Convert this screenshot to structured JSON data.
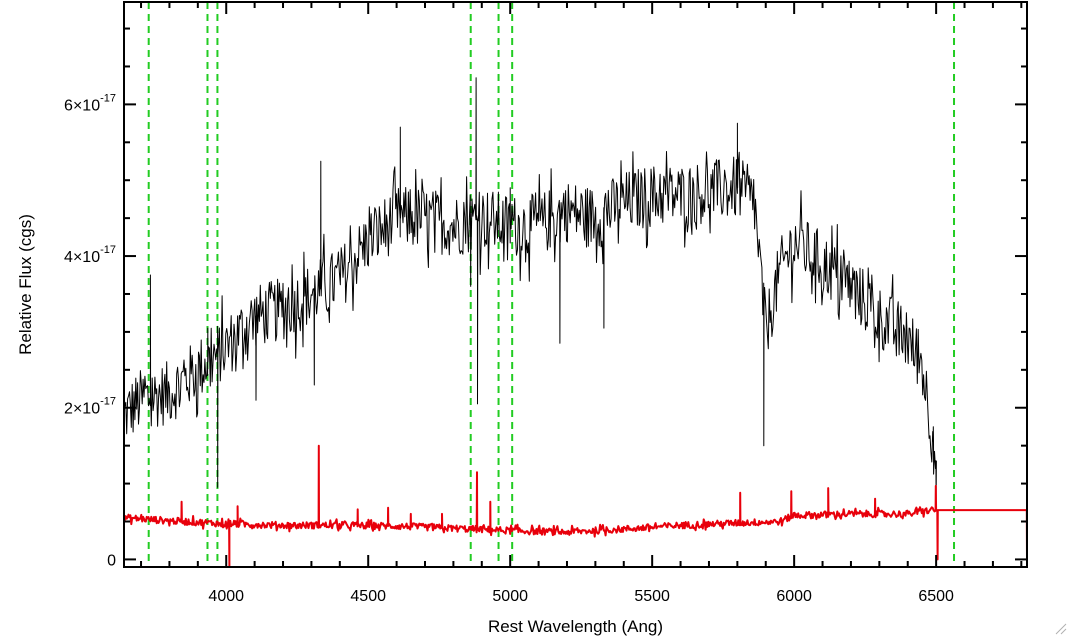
{
  "chart_data": {
    "type": "line",
    "xlabel": "Rest Wavelength (Ang)",
    "ylabel": "Relative Flux (cgs)",
    "xlim": [
      3640,
      6820
    ],
    "ylim": [
      -1e-18,
      7.35e-17
    ],
    "x_ticks": [
      {
        "value": 4000,
        "label": "4000"
      },
      {
        "value": 4500,
        "label": "4500"
      },
      {
        "value": 5000,
        "label": "5000"
      },
      {
        "value": 5500,
        "label": "5500"
      },
      {
        "value": 6000,
        "label": "6000"
      },
      {
        "value": 6500,
        "label": "6500"
      }
    ],
    "y_ticks": [
      {
        "value": 0,
        "label": "0"
      },
      {
        "value": 2e-17,
        "mant": "2×10",
        "exp": "-17"
      },
      {
        "value": 4e-17,
        "mant": "4×10",
        "exp": "-17"
      },
      {
        "value": 6e-17,
        "mant": "6×10",
        "exp": "-17"
      }
    ],
    "series": [
      {
        "role": "flux",
        "color": "#000000",
        "noise": 4.2e-18,
        "x": [
          3640,
          3700,
          3800,
          3900,
          4000,
          4100,
          4200,
          4300,
          4400,
          4500,
          4600,
          4700,
          4800,
          4900,
          5000,
          5100,
          5200,
          5300,
          5400,
          5500,
          5600,
          5700,
          5800,
          5860,
          5900,
          5950,
          6000,
          6100,
          6200,
          6300,
          6400,
          6450,
          6500
        ],
        "y": [
          1.9,
          2.1,
          2.2,
          2.5,
          2.8,
          3.2,
          3.3,
          3.5,
          3.7,
          4.2,
          4.5,
          4.5,
          4.4,
          4.5,
          4.4,
          4.4,
          4.6,
          4.5,
          4.7,
          4.8,
          4.8,
          4.85,
          4.9,
          4.7,
          3.0,
          3.8,
          4.2,
          3.9,
          3.6,
          3.2,
          2.9,
          2.6,
          1.3
        ],
        "spikes": [
          [
            3733,
            3.75
          ],
          [
            3935,
            3.05
          ],
          [
            3970,
            0.95
          ],
          [
            4105,
            2.1
          ],
          [
            4333,
            5.25
          ],
          [
            4310,
            2.3
          ],
          [
            4613,
            5.7
          ],
          [
            4861,
            3.6
          ],
          [
            4880,
            6.35
          ],
          [
            4885,
            2.05
          ],
          [
            5000,
            4.9
          ],
          [
            5175,
            2.85
          ],
          [
            5330,
            3.05
          ],
          [
            5800,
            5.75
          ],
          [
            5893,
            1.5
          ],
          [
            6500,
            0.8
          ],
          [
            6490,
            1.75
          ]
        ]
      },
      {
        "role": "error",
        "color": "#e8000b",
        "noise": 4.5e-19,
        "x": [
          3640,
          3800,
          4000,
          4200,
          4400,
          4600,
          4800,
          5000,
          5200,
          5400,
          5600,
          5800,
          5950,
          6000,
          6200,
          6400,
          6480,
          6500
        ],
        "y": [
          0.55,
          0.51,
          0.47,
          0.45,
          0.45,
          0.44,
          0.41,
          0.38,
          0.36,
          0.4,
          0.45,
          0.48,
          0.5,
          0.58,
          0.6,
          0.6,
          0.65,
          0.65
        ],
        "spikes": [
          [
            3843,
            0.76
          ],
          [
            4011,
            -0.1
          ],
          [
            4040,
            0.7
          ],
          [
            4326,
            1.5
          ],
          [
            4463,
            0.66
          ],
          [
            4570,
            0.68
          ],
          [
            4650,
            0.6
          ],
          [
            4760,
            0.6
          ],
          [
            4883,
            1.15
          ],
          [
            4930,
            0.76
          ],
          [
            5810,
            0.88
          ],
          [
            5990,
            0.9
          ],
          [
            6120,
            0.94
          ],
          [
            6285,
            0.8
          ],
          [
            6499,
            0.97
          ],
          [
            6505,
            0.0
          ],
          [
            6820,
            0.0
          ]
        ]
      }
    ],
    "vlines": {
      "color": "#22cc22",
      "style": "dashed",
      "x": [
        3727,
        3934,
        3969,
        4861,
        4959,
        5007,
        6563
      ]
    }
  }
}
